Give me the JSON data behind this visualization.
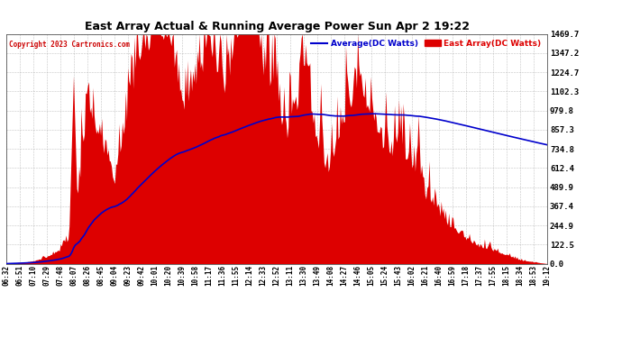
{
  "title": "East Array Actual & Running Average Power Sun Apr 2 19:22",
  "copyright": "Copyright 2023 Cartronics.com",
  "legend_avg": "Average(DC Watts)",
  "legend_east": "East Array(DC Watts)",
  "yticks": [
    0.0,
    122.5,
    244.9,
    367.4,
    489.9,
    612.4,
    734.8,
    857.3,
    979.8,
    1102.3,
    1224.7,
    1347.2,
    1469.7
  ],
  "ylim": [
    0,
    1469.7
  ],
  "bg_color": "#ffffff",
  "grid_color": "#aaaaaa",
  "fill_color": "#dd0000",
  "avg_color": "#0000cc",
  "title_color": "#000000",
  "copyright_color": "#cc0000",
  "xtick_labels": [
    "06:32",
    "06:51",
    "07:10",
    "07:29",
    "07:48",
    "08:07",
    "08:26",
    "08:45",
    "09:04",
    "09:23",
    "09:42",
    "10:01",
    "10:20",
    "10:39",
    "10:58",
    "11:17",
    "11:36",
    "11:55",
    "12:14",
    "12:33",
    "12:52",
    "13:11",
    "13:30",
    "13:49",
    "14:08",
    "14:27",
    "14:46",
    "15:05",
    "15:24",
    "15:43",
    "16:02",
    "16:21",
    "16:40",
    "16:59",
    "17:18",
    "17:37",
    "17:55",
    "18:15",
    "18:34",
    "18:53",
    "19:12"
  ],
  "figwidth": 6.9,
  "figheight": 3.75,
  "dpi": 100
}
